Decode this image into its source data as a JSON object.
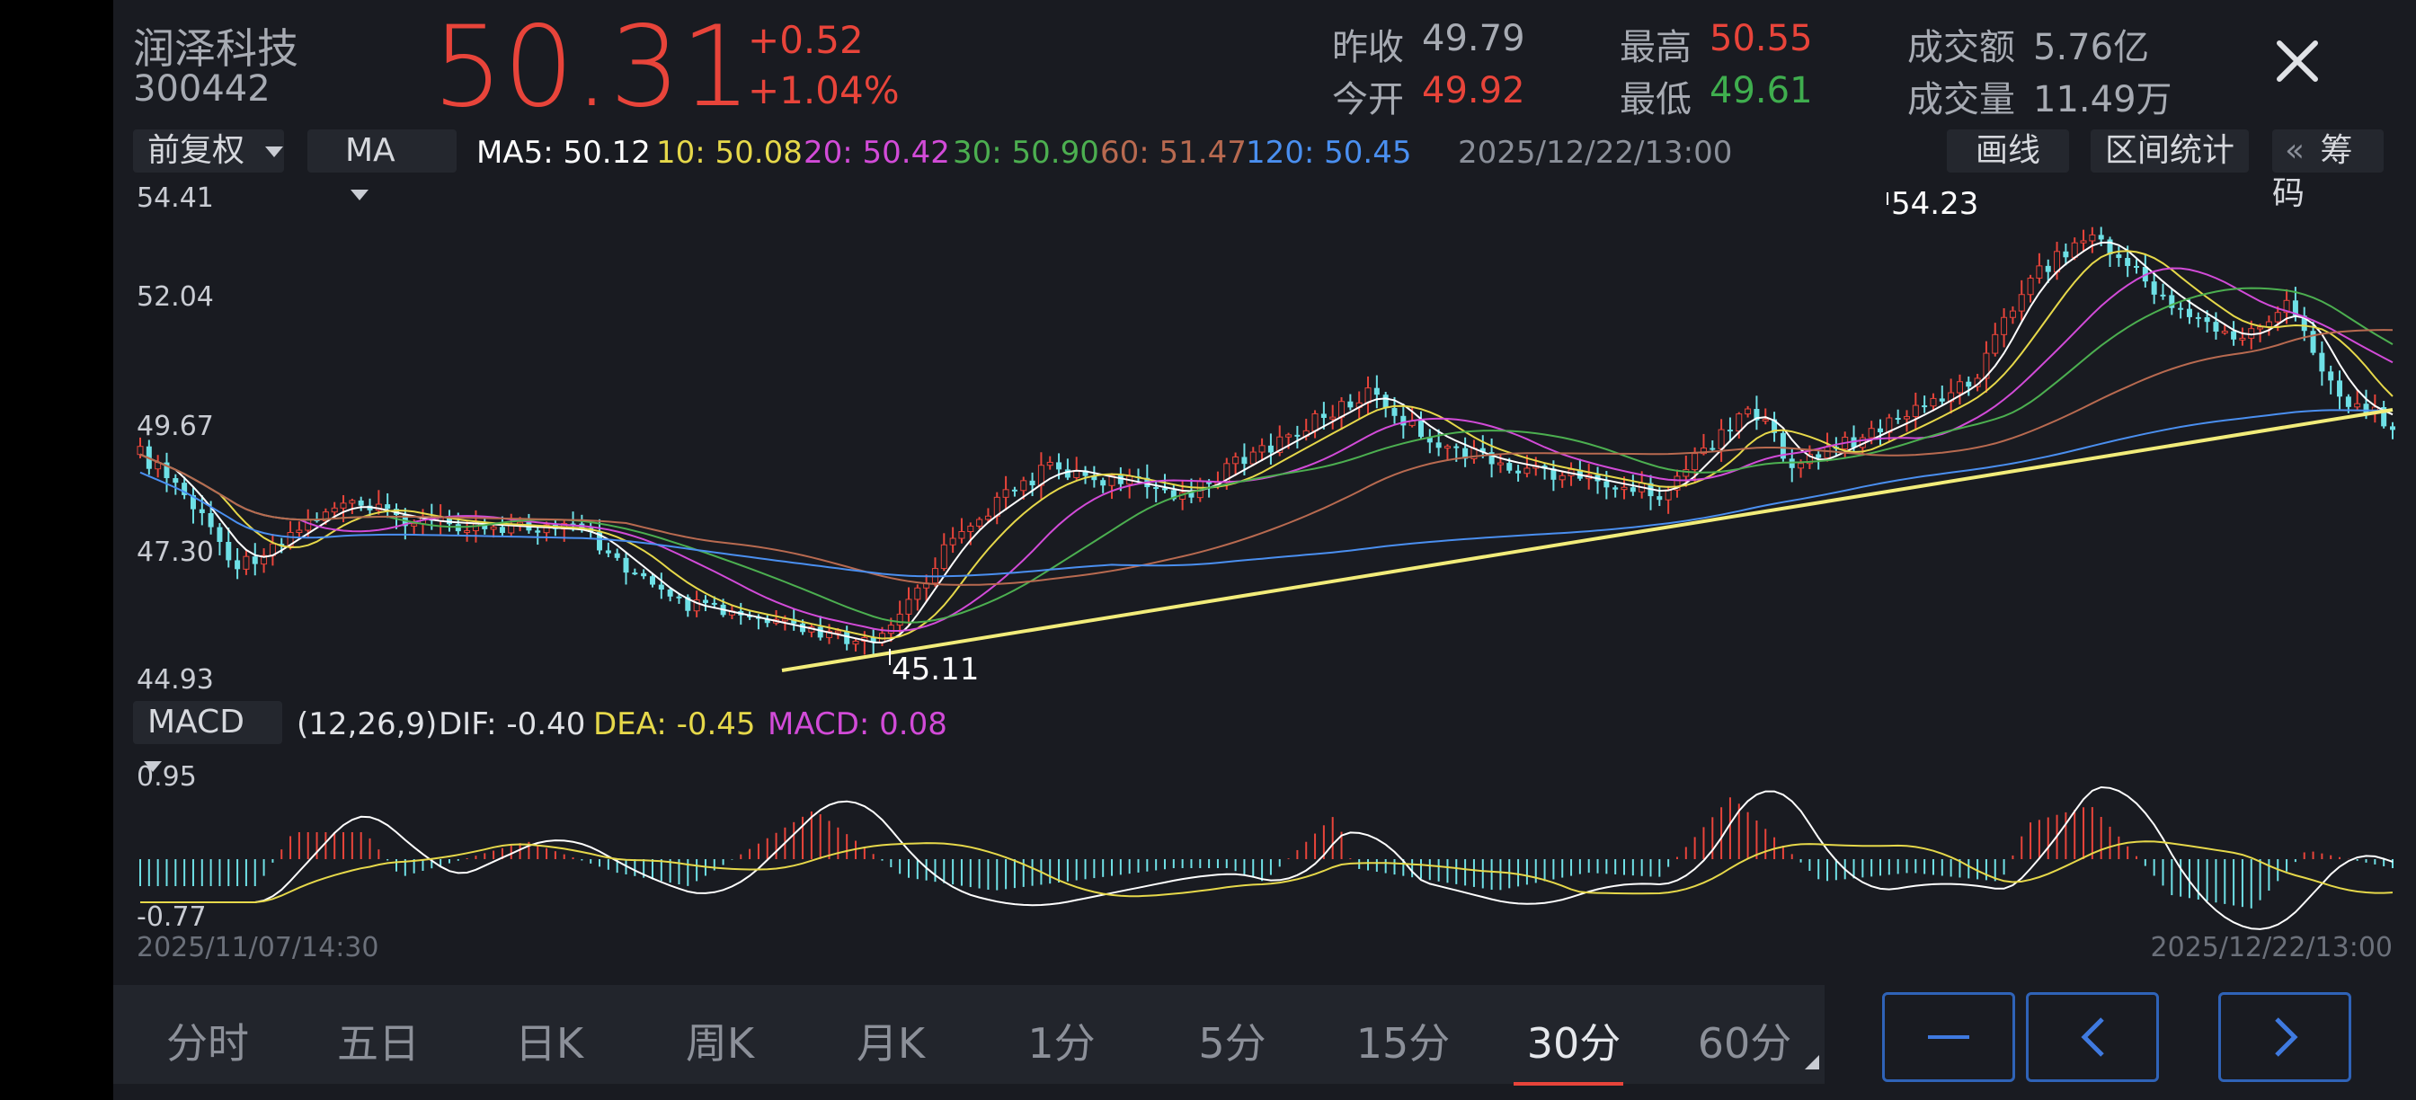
{
  "stock": {
    "name": "润泽科技",
    "code": "300442",
    "price": "50.31",
    "change": "+0.52",
    "change_pct": "+1.04%"
  },
  "quote": {
    "prev_close_label": "昨收",
    "prev_close": "49.79",
    "open_label": "今开",
    "open": "49.92",
    "high_label": "最高",
    "high": "50.55",
    "low_label": "最低",
    "low": "49.61",
    "amount_label": "成交额",
    "amount": "5.76亿",
    "volume_label": "成交量",
    "volume": "11.49万"
  },
  "toolbar": {
    "adjust": "前复权",
    "indicator": "MA",
    "ma5": "MA5: 50.12",
    "ma10": "10: 50.08",
    "ma20": "20: 50.42",
    "ma30": "30: 50.90",
    "ma60": "60: 51.47",
    "ma120": "120: 50.45",
    "timestamp": "2025/12/22/13:00",
    "draw_line": "画线",
    "range_stats": "区间统计",
    "chips_arrow": "«",
    "chips": "筹码"
  },
  "main_axis": {
    "top": "54.41",
    "l2": "52.04",
    "l3": "49.67",
    "l4": "47.30",
    "bottom": "44.93"
  },
  "annotations": {
    "high_mark": "54.23",
    "low_mark": "45.11"
  },
  "macd_header": {
    "name": "MACD",
    "params": "(12,26,9)",
    "dif": "DIF: -0.40",
    "dea": "DEA: -0.45",
    "macd": "MACD: 0.08"
  },
  "macd_axis": {
    "top": "0.95",
    "bottom": "-0.77"
  },
  "date_range": {
    "start": "2025/11/07/14:30",
    "end": "2025/12/22/13:00"
  },
  "period_tabs": [
    "分时",
    "五日",
    "日K",
    "周K",
    "月K",
    "1分",
    "5分",
    "15分",
    "30分",
    "60分"
  ],
  "active_tab": "30分",
  "colors": {
    "up": "#e8443a",
    "down": "#6ee0e6",
    "ma5": "#ffffff",
    "ma10": "#e6d84a",
    "ma20": "#d24bd8",
    "ma30": "#4caf50",
    "ma60": "#b86a50",
    "ma120": "#4a8ff0",
    "trendline": "#f2ec7a"
  },
  "icons": {
    "close": "close-icon",
    "minus": "minus-icon",
    "prev": "chevron-left-icon",
    "next": "chevron-right-icon"
  }
}
